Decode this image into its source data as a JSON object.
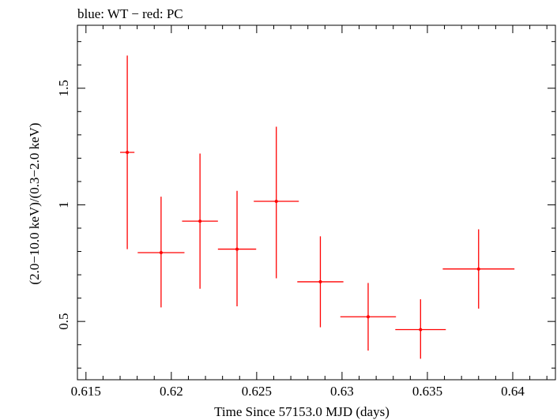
{
  "chart_data": {
    "type": "scatter",
    "title": "blue: WT − red: PC",
    "xlabel": "Time Since 57153.0 MJD (days)",
    "ylabel": "(2.0−10.0 keV)/(0.3−2.0 keV)",
    "xlim": [
      0.6145,
      0.6425
    ],
    "ylim": [
      0.25,
      1.77
    ],
    "x_ticks": [
      {
        "value": 0.615,
        "label": "0.615"
      },
      {
        "value": 0.62,
        "label": "0.62"
      },
      {
        "value": 0.625,
        "label": "0.625"
      },
      {
        "value": 0.63,
        "label": "0.63"
      },
      {
        "value": 0.635,
        "label": "0.635"
      },
      {
        "value": 0.64,
        "label": "0.64"
      }
    ],
    "y_ticks": [
      {
        "value": 0.5,
        "label": "0.5"
      },
      {
        "value": 1.0,
        "label": "1"
      },
      {
        "value": 1.5,
        "label": "1.5"
      }
    ],
    "grid": false,
    "legend": "none",
    "series": [
      {
        "color": "#ff0000",
        "points": [
          {
            "x": 0.61742,
            "xerr": 0.00042,
            "y": 1.225,
            "ylo": 0.81,
            "yhi": 1.64
          },
          {
            "x": 0.6194,
            "xerr": 0.00137,
            "y": 0.795,
            "ylo": 0.56,
            "yhi": 1.035
          },
          {
            "x": 0.62168,
            "xerr": 0.00105,
            "y": 0.93,
            "ylo": 0.64,
            "yhi": 1.22
          },
          {
            "x": 0.62385,
            "xerr": 0.00112,
            "y": 0.81,
            "ylo": 0.565,
            "yhi": 1.06
          },
          {
            "x": 0.62615,
            "xerr": 0.00132,
            "y": 1.015,
            "ylo": 0.685,
            "yhi": 1.335
          },
          {
            "x": 0.62873,
            "xerr": 0.00135,
            "y": 0.67,
            "ylo": 0.475,
            "yhi": 0.865
          },
          {
            "x": 0.63153,
            "xerr": 0.00163,
            "y": 0.52,
            "ylo": 0.375,
            "yhi": 0.665
          },
          {
            "x": 0.6346,
            "xerr": 0.00148,
            "y": 0.465,
            "ylo": 0.34,
            "yhi": 0.595
          },
          {
            "x": 0.638,
            "xerr": 0.0021,
            "y": 0.725,
            "ylo": 0.555,
            "yhi": 0.895
          }
        ]
      }
    ]
  }
}
